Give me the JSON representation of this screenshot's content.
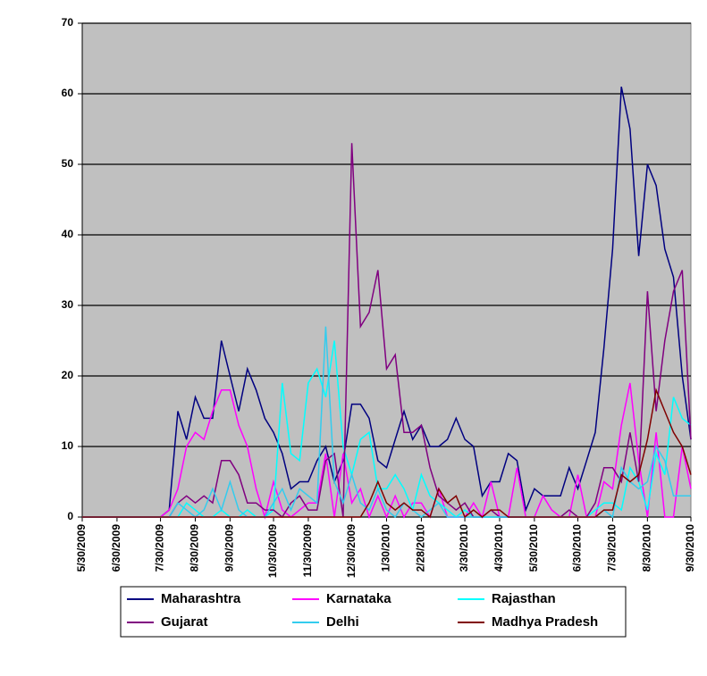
{
  "chart_data": {
    "type": "line",
    "categories": [
      "5/30/2009",
      null,
      null,
      null,
      "6/30/2009",
      null,
      null,
      null,
      null,
      "7/30/2009",
      null,
      null,
      null,
      "8/30/2009",
      null,
      null,
      null,
      "9/30/2009",
      null,
      null,
      null,
      null,
      "10/30/2009",
      null,
      null,
      null,
      "11/30/2009",
      null,
      null,
      null,
      null,
      "12/30/2009",
      null,
      null,
      null,
      "1/30/2010",
      null,
      null,
      null,
      "2/28/2010",
      null,
      null,
      null,
      null,
      "3/30/2010",
      null,
      null,
      null,
      "4/30/2010",
      null,
      null,
      null,
      "5/30/2010",
      null,
      null,
      null,
      null,
      "6/30/2010",
      null,
      null,
      null,
      "7/30/2010",
      null,
      null,
      null,
      "8/30/2010",
      null,
      null,
      null,
      null,
      "9/30/2010"
    ],
    "series": [
      {
        "name": "Maharashtra",
        "color": "#000080",
        "values": [
          0,
          0,
          0,
          0,
          0,
          0,
          0,
          0,
          0,
          0,
          1,
          15,
          11,
          17,
          14,
          14,
          25,
          20,
          15,
          21,
          18,
          14,
          12,
          9,
          4,
          5,
          5,
          8,
          10,
          5,
          8,
          16,
          16,
          14,
          8,
          7,
          11,
          15,
          11,
          13,
          10,
          10,
          11,
          14,
          11,
          10,
          3,
          5,
          5,
          9,
          8,
          1,
          4,
          3,
          3,
          3,
          7,
          4,
          8,
          12,
          24,
          38,
          61,
          55,
          37,
          50,
          47,
          38,
          34,
          20,
          11
        ]
      },
      {
        "name": "Karnataka",
        "color": "#ff00ff",
        "values": [
          0,
          0,
          0,
          0,
          0,
          0,
          0,
          0,
          0,
          0,
          1,
          4,
          10,
          12,
          11,
          15,
          18,
          18,
          13,
          10,
          4,
          0,
          5,
          1,
          0,
          1,
          2,
          2,
          9,
          0,
          9,
          2,
          4,
          0,
          3,
          0,
          3,
          0,
          2,
          2,
          0,
          4,
          0,
          0,
          0,
          2,
          0,
          5,
          0,
          0,
          7,
          0,
          0,
          3,
          1,
          0,
          0,
          6,
          0,
          0,
          5,
          4,
          13,
          19,
          8,
          0,
          12,
          0,
          0,
          10,
          4
        ]
      },
      {
        "name": "Rajasthan",
        "color": "#00ffff",
        "values": [
          0,
          0,
          0,
          0,
          0,
          0,
          0,
          0,
          0,
          0,
          0,
          0,
          2,
          1,
          0,
          0,
          1,
          0,
          0,
          1,
          0,
          0,
          1,
          19,
          9,
          8,
          19,
          21,
          17,
          25,
          10,
          6,
          11,
          12,
          4,
          4,
          6,
          4,
          1,
          6,
          3,
          2,
          1,
          0,
          1,
          0,
          0,
          0,
          0,
          0,
          0,
          0,
          0,
          0,
          0,
          0,
          0,
          0,
          0,
          1,
          2,
          2,
          1,
          7,
          5,
          1,
          9,
          6,
          17,
          14,
          13
        ]
      },
      {
        "name": "Gujarat",
        "color": "#800080",
        "values": [
          0,
          0,
          0,
          0,
          0,
          0,
          0,
          0,
          0,
          0,
          0,
          2,
          3,
          2,
          3,
          2,
          8,
          8,
          6,
          2,
          2,
          1,
          1,
          0,
          2,
          3,
          1,
          1,
          8,
          9,
          0,
          53,
          27,
          29,
          35,
          21,
          23,
          12,
          12,
          13,
          7,
          3,
          2,
          1,
          2,
          0,
          0,
          1,
          0,
          0,
          0,
          0,
          0,
          0,
          0,
          0,
          1,
          0,
          0,
          2,
          7,
          7,
          5,
          12,
          5,
          32,
          15,
          25,
          32,
          35,
          11
        ]
      },
      {
        "name": "Delhi",
        "color": "#33ccee",
        "values": [
          0,
          0,
          0,
          0,
          0,
          0,
          0,
          0,
          0,
          0,
          0,
          2,
          1,
          0,
          1,
          4,
          1,
          5,
          1,
          0,
          0,
          0,
          2,
          4,
          1,
          4,
          3,
          2,
          27,
          5,
          2,
          6,
          2,
          1,
          4,
          1,
          0,
          2,
          1,
          0,
          1,
          2,
          0,
          0,
          0,
          0,
          0,
          0,
          0,
          0,
          0,
          0,
          0,
          0,
          0,
          0,
          0,
          0,
          0,
          0,
          1,
          0,
          7,
          5,
          4,
          5,
          10,
          8,
          3,
          3,
          3
        ]
      },
      {
        "name": "Madhya Pradesh",
        "color": "#800000",
        "values": [
          0,
          0,
          0,
          0,
          0,
          0,
          0,
          0,
          0,
          0,
          0,
          0,
          0,
          0,
          0,
          0,
          0,
          0,
          0,
          0,
          0,
          0,
          0,
          0,
          0,
          0,
          0,
          0,
          0,
          0,
          0,
          0,
          0,
          2,
          5,
          2,
          1,
          2,
          1,
          1,
          0,
          4,
          2,
          3,
          0,
          1,
          0,
          1,
          1,
          0,
          0,
          0,
          0,
          0,
          0,
          0,
          0,
          0,
          0,
          0,
          1,
          1,
          6,
          5,
          6,
          11,
          18,
          15,
          12,
          10,
          6
        ]
      }
    ],
    "ylim": [
      0,
      70
    ],
    "yticks": [
      0,
      10,
      20,
      30,
      40,
      50,
      60,
      70
    ],
    "grid": true,
    "plot_background": "#c0c0c0"
  }
}
